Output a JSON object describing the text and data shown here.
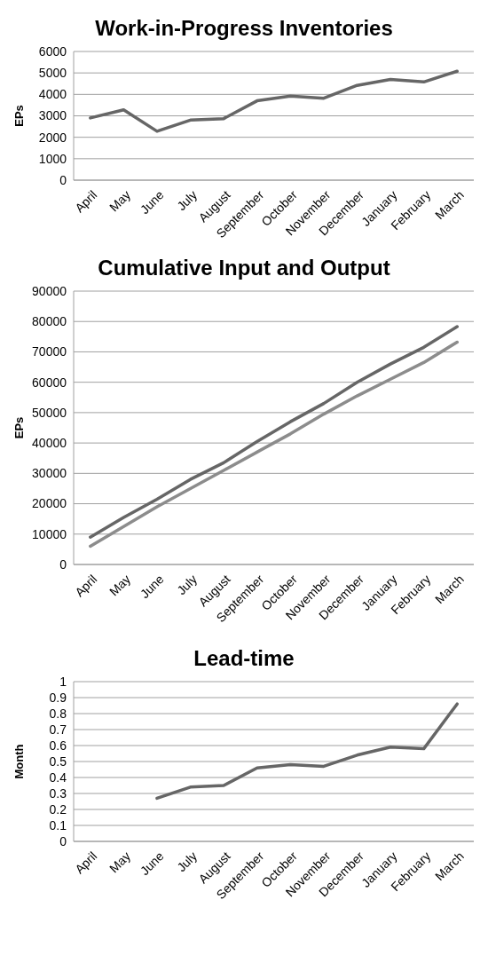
{
  "chart_data": [
    {
      "type": "line",
      "title": "Work-in-Progress Inventories",
      "ylabel": "EPs",
      "categories": [
        "April",
        "May",
        "June",
        "July",
        "August",
        "September",
        "October",
        "November",
        "December",
        "January",
        "February",
        "March"
      ],
      "series": [
        {
          "color": "#666666",
          "values": [
            2900,
            3280,
            2280,
            2800,
            2870,
            3700,
            3920,
            3820,
            4420,
            4700,
            4580,
            5080
          ]
        }
      ],
      "ylim": [
        0,
        6000
      ],
      "yticks": [
        0,
        1000,
        2000,
        3000,
        4000,
        5000,
        6000
      ],
      "grid": "y"
    },
    {
      "type": "line",
      "title": "Cumulative Input and Output",
      "ylabel": "EPs",
      "categories": [
        "April",
        "May",
        "June",
        "July",
        "August",
        "September",
        "October",
        "November",
        "December",
        "January",
        "February",
        "March"
      ],
      "series": [
        {
          "color": "#666666",
          "values": [
            9000,
            15500,
            21500,
            28000,
            33500,
            40500,
            47000,
            53000,
            60000,
            66000,
            71500,
            78300
          ]
        },
        {
          "color": "#8c8c8c",
          "values": [
            6000,
            12500,
            19000,
            25000,
            31000,
            37000,
            43000,
            49500,
            55500,
            61000,
            66500,
            73200
          ]
        }
      ],
      "ylim": [
        0,
        90000
      ],
      "yticks": [
        0,
        10000,
        20000,
        30000,
        40000,
        50000,
        60000,
        70000,
        80000,
        90000
      ],
      "grid": "y"
    },
    {
      "type": "line",
      "title": "Lead-time",
      "ylabel": "Month",
      "categories": [
        "April",
        "May",
        "June",
        "July",
        "August",
        "September",
        "October",
        "November",
        "December",
        "January",
        "February",
        "March"
      ],
      "series": [
        {
          "color": "#666666",
          "values": [
            null,
            null,
            0.27,
            0.34,
            0.35,
            0.46,
            0.48,
            0.47,
            0.54,
            0.59,
            0.58,
            0.86
          ]
        }
      ],
      "ylim": [
        0,
        1
      ],
      "yticks": [
        0,
        0.1,
        0.2,
        0.3,
        0.4,
        0.5,
        0.6,
        0.7,
        0.8,
        0.9,
        1
      ],
      "grid": "y"
    }
  ]
}
